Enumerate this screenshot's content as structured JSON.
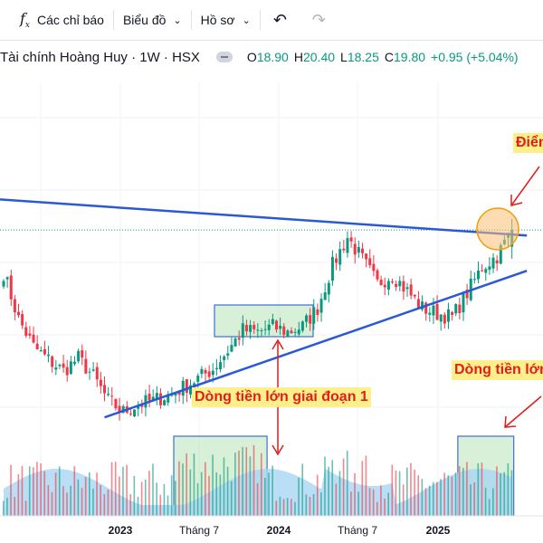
{
  "toolbar": {
    "indicators_label": "Các chỉ báo",
    "chart_label": "Biểu đồ",
    "profile_label": "Hồ sơ"
  },
  "legend": {
    "name": "Tài chính Hoàng Huy · 1W · HSX",
    "o_key": "O",
    "o_val": "18.90",
    "h_key": "H",
    "h_val": "20.40",
    "l_key": "L",
    "l_val": "18.25",
    "c_key": "C",
    "c_val": "19.80",
    "change": "+0.95 (+5.04%)"
  },
  "annotations": {
    "breakout": "Điểm",
    "flow_stage1": "Dòng tiền lớn giai đoạn 1",
    "flow_current": "Dòng tiền lớn"
  },
  "colors": {
    "up": "#089981",
    "down": "#f23645",
    "trendline": "#2a59d6",
    "annotation_text": "#e11d1d",
    "annotation_bg": "#fdf08a",
    "box_fill": "#b7e4b7",
    "volume_ma_area": "#a9d6f2",
    "breakout_circle": "#fbbf77"
  },
  "chart_data": {
    "type": "candlestick",
    "symbol": "Tài chính Hoàng Huy",
    "timeframe": "1W",
    "exchange": "HSX",
    "last_bar": {
      "open": 18.9,
      "high": 20.4,
      "low": 18.25,
      "close": 19.8,
      "change": 0.95,
      "change_pct": 5.04
    },
    "x_tick_labels": [
      "2023",
      "Tháng 7",
      "2024",
      "Tháng 7",
      "2025"
    ],
    "price_path": [
      [
        0,
        17.5
      ],
      [
        4,
        15.0
      ],
      [
        8,
        13.5
      ],
      [
        12,
        12.8
      ],
      [
        16,
        12.2
      ],
      [
        20,
        12.9
      ],
      [
        24,
        11.9
      ],
      [
        28,
        10.6
      ],
      [
        32,
        10.0
      ],
      [
        36,
        10.4
      ],
      [
        40,
        10.6
      ],
      [
        44,
        10.9
      ],
      [
        48,
        11.3
      ],
      [
        52,
        11.8
      ],
      [
        56,
        12.3
      ],
      [
        60,
        13.3
      ],
      [
        64,
        14.4
      ],
      [
        68,
        14.3
      ],
      [
        72,
        14.6
      ],
      [
        76,
        14.3
      ],
      [
        80,
        14.6
      ],
      [
        84,
        15.6
      ],
      [
        88,
        17.9
      ],
      [
        92,
        19.4
      ],
      [
        96,
        18.2
      ],
      [
        100,
        16.9
      ],
      [
        104,
        17.4
      ],
      [
        108,
        16.5
      ],
      [
        112,
        15.6
      ],
      [
        116,
        15.3
      ],
      [
        120,
        15.1
      ],
      [
        124,
        16.4
      ],
      [
        128,
        17.8
      ],
      [
        132,
        18.4
      ],
      [
        136,
        19.8
      ]
    ],
    "volume_highlight_ranges": [
      [
        46,
        70
      ],
      [
        122,
        136
      ]
    ],
    "support_line": {
      "from": [
        27,
        9.7
      ],
      "to": [
        140,
        17.6
      ]
    },
    "resistance_line": {
      "from": [
        -5,
        21.5
      ],
      "to": [
        140,
        19.5
      ]
    }
  }
}
